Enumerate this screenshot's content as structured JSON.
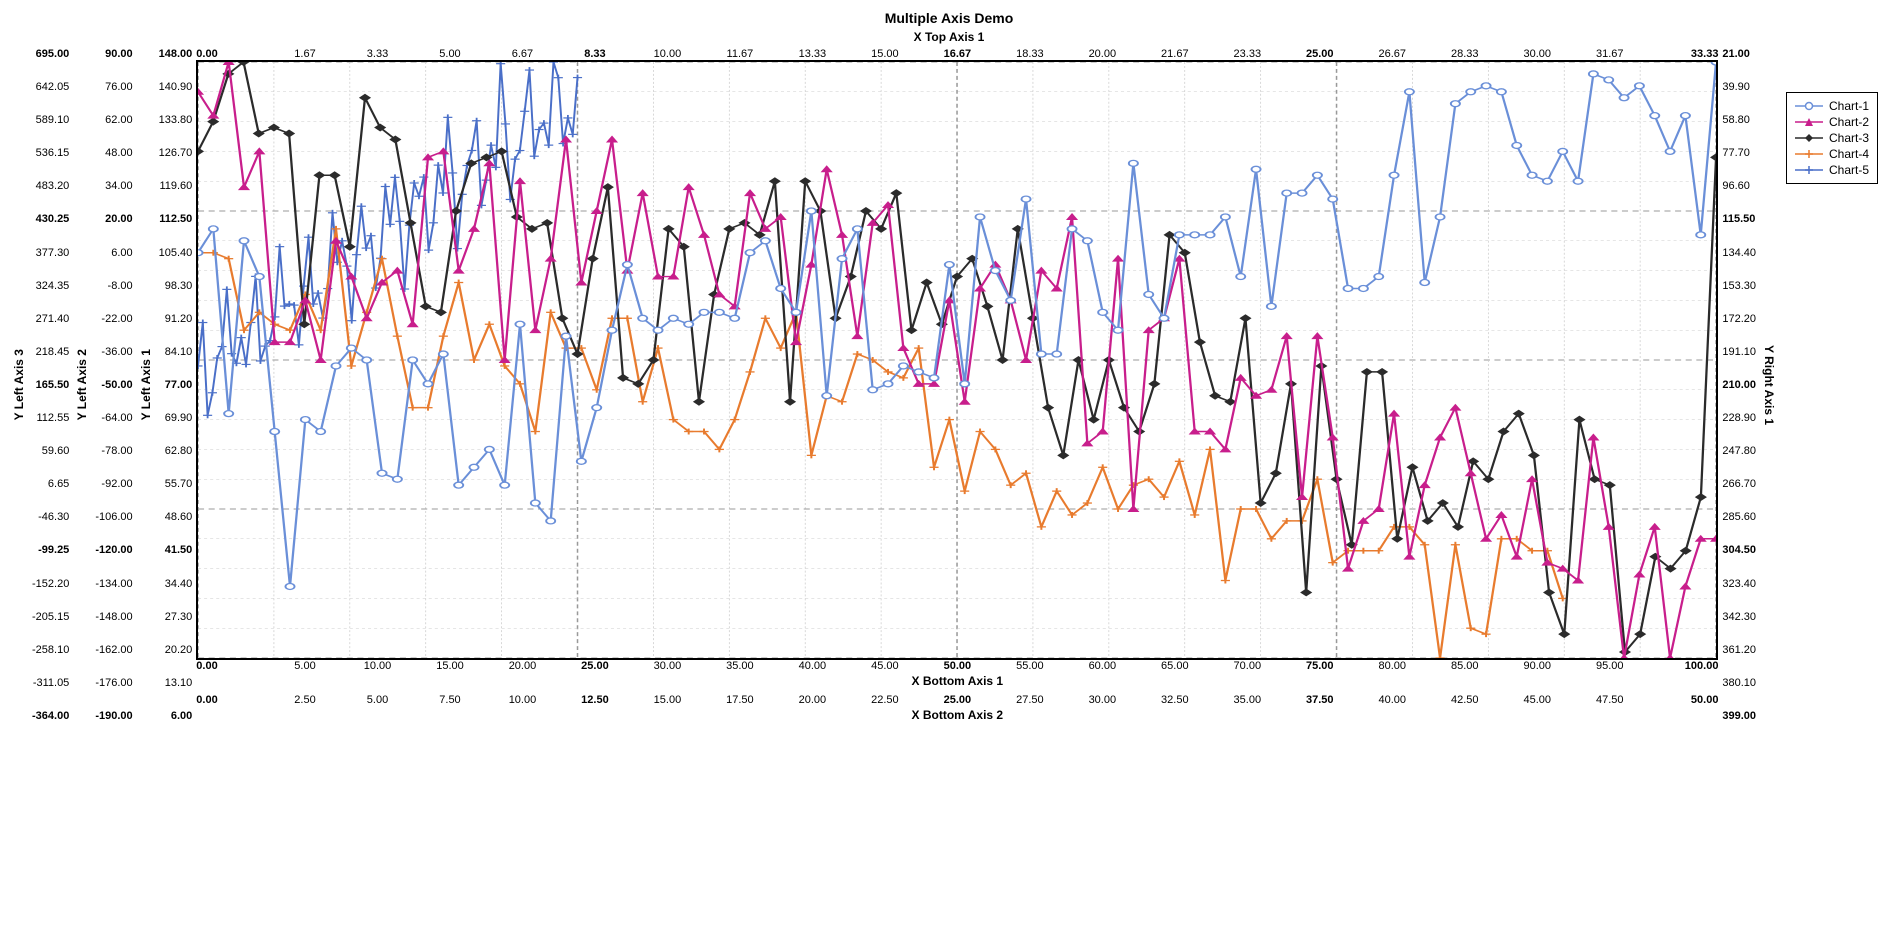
{
  "chart": {
    "type": "line-multi-axis",
    "title": "Multiple Axis Demo",
    "x_top_axis_label": "X Top Axis 1",
    "x_bottom_axis_1_label": "X Bottom Axis 1",
    "x_bottom_axis_2_label": "X Bottom Axis 2",
    "y_left_axis_1_label": "Y Left Axis 1",
    "y_left_axis_2_label": "Y Left Axis 2",
    "y_left_axis_3_label": "Y Left Axis 3",
    "y_right_axis_1_label": "Y Right Axis 1",
    "background_color": "#ffffff",
    "border_color": "#000000",
    "grid_color": "#cccccc",
    "major_grid_color": "#999999",
    "title_fontsize": 14,
    "axis_label_fontsize": 12,
    "tick_fontsize": 11,
    "line_width": 1.5,
    "marker_size": 5,
    "x_bottom_1": {
      "min": 0,
      "max": 100,
      "step": 5,
      "major_every": 5,
      "ticks": [
        "0.00",
        "5.00",
        "10.00",
        "15.00",
        "20.00",
        "25.00",
        "30.00",
        "35.00",
        "40.00",
        "45.00",
        "50.00",
        "55.00",
        "60.00",
        "65.00",
        "70.00",
        "75.00",
        "80.00",
        "85.00",
        "90.00",
        "95.00",
        "100.00"
      ],
      "bold_indices": [
        0,
        5,
        10,
        15,
        20
      ]
    },
    "x_bottom_2": {
      "min": 0,
      "max": 50,
      "step": 2.5,
      "ticks": [
        "0.00",
        "2.50",
        "5.00",
        "7.50",
        "10.00",
        "12.50",
        "15.00",
        "17.50",
        "20.00",
        "22.50",
        "25.00",
        "27.50",
        "30.00",
        "32.50",
        "35.00",
        "37.50",
        "40.00",
        "42.50",
        "45.00",
        "47.50",
        "50.00"
      ],
      "bold_indices": [
        0,
        5,
        10,
        15,
        20
      ]
    },
    "x_top_1": {
      "min": 0,
      "max": 33.33,
      "step": 1.67,
      "ticks": [
        "0.00",
        "1.67",
        "3.33",
        "5.00",
        "6.67",
        "8.33",
        "10.00",
        "11.67",
        "13.33",
        "15.00",
        "16.67",
        "18.33",
        "20.00",
        "21.67",
        "23.33",
        "25.00",
        "26.67",
        "28.33",
        "30.00",
        "31.67",
        "33.33"
      ],
      "bold_indices": [
        0,
        5,
        10,
        15,
        20
      ]
    },
    "y_left_1": {
      "min": 6,
      "max": 148,
      "step": 7.1,
      "ticks": [
        "148.00",
        "140.90",
        "133.80",
        "126.70",
        "119.60",
        "112.50",
        "105.40",
        "98.30",
        "91.20",
        "84.10",
        "77.00",
        "69.90",
        "62.80",
        "55.70",
        "48.60",
        "41.50",
        "34.40",
        "27.30",
        "20.20",
        "13.10",
        "6.00"
      ],
      "bold_indices": [
        0,
        5,
        10,
        15,
        20
      ]
    },
    "y_left_2": {
      "min": -190,
      "max": 90,
      "step": 14,
      "ticks": [
        "90.00",
        "76.00",
        "62.00",
        "48.00",
        "34.00",
        "20.00",
        "6.00",
        "-8.00",
        "-22.00",
        "-36.00",
        "-50.00",
        "-64.00",
        "-78.00",
        "-92.00",
        "-106.00",
        "-120.00",
        "-134.00",
        "-148.00",
        "-162.00",
        "-176.00",
        "-190.00"
      ],
      "bold_indices": [
        0,
        5,
        10,
        15,
        20
      ]
    },
    "y_left_3": {
      "min": -364,
      "max": 695,
      "step": 52.95,
      "ticks": [
        "695.00",
        "642.05",
        "589.10",
        "536.15",
        "483.20",
        "430.25",
        "377.30",
        "324.35",
        "271.40",
        "218.45",
        "165.50",
        "112.55",
        "59.60",
        "6.65",
        "-46.30",
        "-99.25",
        "-152.20",
        "-205.15",
        "-258.10",
        "-311.05",
        "-364.00"
      ],
      "bold_indices": [
        0,
        5,
        10,
        15,
        20
      ]
    },
    "y_right_1": {
      "min": 21,
      "max": 399,
      "step": 18.9,
      "ticks": [
        "21.00",
        "39.90",
        "58.80",
        "77.70",
        "96.60",
        "115.50",
        "134.40",
        "153.30",
        "172.20",
        "191.10",
        "210.00",
        "228.90",
        "247.80",
        "266.70",
        "285.60",
        "304.50",
        "323.40",
        "342.30",
        "361.20",
        "380.10",
        "399.00"
      ],
      "bold_indices": [
        0,
        5,
        10,
        15,
        20
      ]
    },
    "legend": [
      {
        "label": "Chart-1",
        "color": "#6a8fd8",
        "marker": "circle"
      },
      {
        "label": "Chart-2",
        "color": "#c81e8c",
        "marker": "triangle"
      },
      {
        "label": "Chart-3",
        "color": "#2b2b2b",
        "marker": "diamond"
      },
      {
        "label": "Chart-4",
        "color": "#e87b2e",
        "marker": "plus"
      },
      {
        "label": "Chart-5",
        "color": "#4a6fc8",
        "marker": "plus"
      }
    ],
    "series": {
      "chart1": {
        "color": "#6a8fd8",
        "marker": "circle",
        "y": [
          68,
          72,
          41,
          70,
          64,
          38,
          12,
          40,
          38,
          49,
          52,
          50,
          31,
          30,
          50,
          46,
          51,
          29,
          32,
          35,
          29,
          56,
          26,
          23,
          54,
          33,
          42,
          55,
          66,
          57,
          55,
          57,
          56,
          58,
          58,
          57,
          68,
          70,
          62,
          58,
          75,
          44,
          67,
          72,
          45,
          46,
          49,
          48,
          47,
          66,
          46,
          74,
          65,
          60,
          77,
          51,
          51,
          72,
          70,
          58,
          55,
          83,
          61,
          57,
          71,
          71,
          71,
          74,
          64,
          82,
          59,
          78,
          78,
          81,
          77,
          62,
          62,
          64,
          81,
          95,
          63,
          74,
          93,
          95,
          96,
          95,
          86,
          81,
          80,
          85,
          80,
          98,
          97,
          94,
          96,
          91,
          85,
          91,
          71,
          100
        ]
      },
      "chart2": {
        "color": "#c81e8c",
        "marker": "triangle",
        "y": [
          95,
          91,
          100,
          79,
          85,
          53,
          53,
          60,
          50,
          70,
          64,
          57,
          63,
          65,
          56,
          84,
          85,
          65,
          72,
          83,
          50,
          80,
          55,
          67,
          87,
          63,
          75,
          87,
          65,
          78,
          64,
          64,
          79,
          71,
          61,
          59,
          78,
          72,
          74,
          53,
          66,
          82,
          71,
          54,
          73,
          76,
          52,
          46,
          46,
          60,
          43,
          62,
          66,
          60,
          50,
          65,
          62,
          74,
          36,
          38,
          67,
          25,
          55,
          57,
          67,
          38,
          38,
          35,
          47,
          44,
          45,
          54,
          27,
          54,
          37,
          15,
          23,
          25,
          41,
          17,
          29,
          37,
          42,
          31,
          20,
          24,
          17,
          30,
          16,
          15,
          13,
          37,
          22,
          0,
          14,
          22,
          0,
          12,
          20,
          20
        ]
      },
      "chart3": {
        "color": "#2b2b2b",
        "marker": "diamond",
        "y": [
          85,
          90,
          98,
          100,
          88,
          89,
          88,
          56,
          81,
          81,
          69,
          94,
          89,
          87,
          73,
          59,
          58,
          75,
          83,
          84,
          85,
          74,
          72,
          73,
          57,
          51,
          67,
          79,
          47,
          46,
          50,
          72,
          69,
          43,
          61,
          72,
          73,
          71,
          80,
          43,
          80,
          75,
          57,
          64,
          75,
          72,
          78,
          55,
          63,
          56,
          64,
          67,
          59,
          50,
          72,
          57,
          42,
          34,
          50,
          40,
          50,
          42,
          38,
          46,
          71,
          68,
          53,
          44,
          43,
          57,
          26,
          31,
          46,
          11,
          49,
          30,
          19,
          48,
          48,
          20,
          32,
          23,
          26,
          22,
          33,
          30,
          38,
          41,
          34,
          11,
          4,
          40,
          30,
          29,
          1,
          4,
          17,
          15,
          18,
          27,
          84
        ]
      },
      "chart4": {
        "color": "#e87b2e",
        "marker": "plus",
        "y": [
          68,
          68,
          67,
          55,
          58,
          56,
          55,
          61,
          55,
          72,
          49,
          58,
          67,
          54,
          42,
          42,
          54,
          63,
          50,
          56,
          49,
          46,
          38,
          58,
          52,
          52,
          45,
          57,
          57,
          43,
          52,
          40,
          38,
          38,
          35,
          40,
          48,
          57,
          52,
          58,
          34,
          44,
          43,
          51,
          50,
          48,
          47,
          52,
          32,
          40,
          28,
          38,
          35,
          29,
          31,
          22,
          28,
          24,
          26,
          32,
          25,
          29,
          30,
          27,
          33,
          24,
          35,
          13,
          25,
          25,
          20,
          23,
          23,
          30,
          16,
          18,
          18,
          18,
          22,
          22,
          19,
          0,
          19,
          5,
          4,
          20,
          20,
          18,
          18,
          10,
          null,
          null,
          null,
          null,
          null,
          null,
          null,
          null,
          null,
          null
        ]
      },
      "chart5": {
        "color": "#4a6fc8",
        "marker": "plus",
        "y_double": true,
        "y": [
          66,
          68,
          68,
          70,
          56,
          58,
          56,
          51,
          55,
          53,
          61,
          63,
          55,
          55,
          66,
          72,
          70,
          73,
          49,
          50,
          58,
          68,
          67,
          65,
          54,
          56,
          42,
          46,
          42,
          53,
          54,
          60,
          63,
          65,
          50,
          51,
          56,
          57,
          49,
          49,
          46,
          53,
          38,
          37,
          58,
          63,
          52,
          53,
          52,
          58,
          45,
          44,
          57,
          59,
          57,
          58,
          43,
          40,
          52,
          50,
          40,
          40,
          38,
          37,
          38,
          40,
          35,
          35,
          40,
          40,
          48,
          45,
          57,
          60,
          70,
          72,
          73,
          76,
          77,
          80,
          80,
          83,
          85,
          88,
          88,
          90,
          90,
          93,
          95,
          97,
          97,
          99,
          100,
          100,
          null,
          null,
          null,
          null,
          null,
          null,
          null,
          null,
          null,
          null,
          null,
          null,
          null,
          null,
          null,
          null
        ]
      }
    }
  }
}
